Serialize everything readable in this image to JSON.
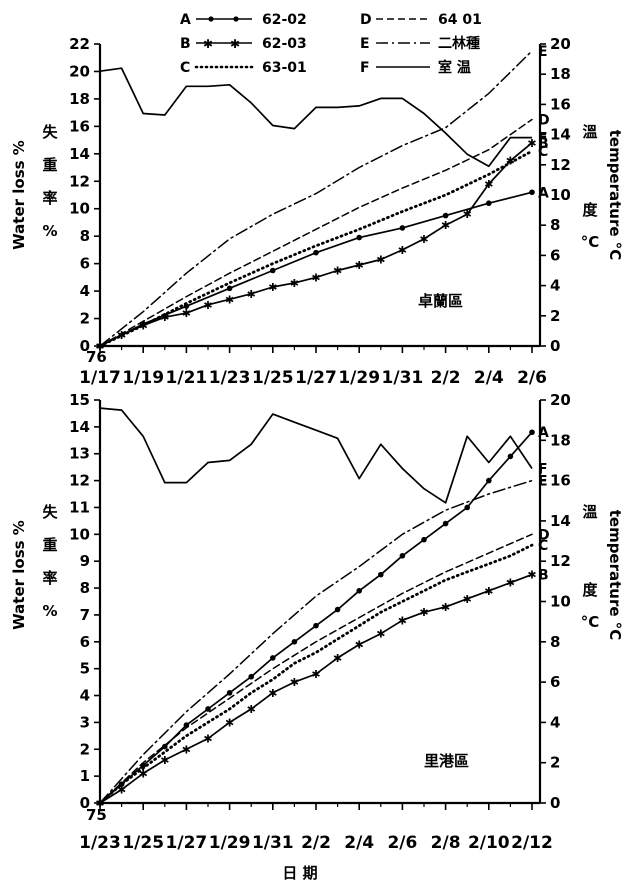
{
  "legend": {
    "entries": [
      {
        "letter": "A",
        "label": "62-02"
      },
      {
        "letter": "B",
        "label": "62-03"
      },
      {
        "letter": "C",
        "label": "63-01"
      },
      {
        "letter": "D",
        "label": "64 01"
      },
      {
        "letter": "E",
        "label": "二林種"
      },
      {
        "letter": "F",
        "label": "室 温"
      }
    ]
  },
  "chart_data": [
    {
      "type": "line",
      "region": "卓蘭區",
      "year_label": "76",
      "x_tick_labels": [
        "1/17",
        "1/19",
        "1/21",
        "1/23",
        "1/25",
        "1/27",
        "1/29",
        "1/31",
        "2/2",
        "2/4",
        "2/6"
      ],
      "ylabel_left": "Water loss %",
      "ylabel_left_cn": "失重率%",
      "ylabel_right": "temperature °C",
      "ylabel_right_cn": "溫度°C",
      "ylim_left": [
        0,
        22
      ],
      "ylim_right": [
        0,
        20
      ],
      "yticks_left": [
        0,
        2,
        4,
        6,
        8,
        10,
        12,
        14,
        16,
        18,
        20,
        22
      ],
      "yticks_right": [
        0,
        2,
        4,
        6,
        8,
        10,
        12,
        14,
        16,
        18,
        20
      ],
      "series": [
        {
          "letter": "A",
          "name": "62-02",
          "axis": "left",
          "x": [
            0,
            2,
            4,
            6,
            8,
            10,
            12,
            14,
            16,
            18,
            20
          ],
          "values": [
            0,
            1.6,
            2.9,
            4.2,
            5.5,
            6.8,
            7.9,
            8.6,
            9.5,
            10.4,
            11.2
          ]
        },
        {
          "letter": "B",
          "name": "62-03",
          "axis": "left",
          "x": [
            0,
            1,
            2,
            3,
            4,
            5,
            6,
            7,
            8,
            9,
            10,
            11,
            12,
            13,
            14,
            15,
            16,
            17,
            18,
            19,
            20
          ],
          "values": [
            0,
            0.8,
            1.5,
            2.1,
            2.4,
            3.0,
            3.4,
            3.8,
            4.3,
            4.6,
            5.0,
            5.5,
            5.9,
            6.3,
            7.0,
            7.8,
            8.8,
            9.6,
            11.8,
            13.5,
            14.8
          ]
        },
        {
          "letter": "C",
          "name": "63-01",
          "axis": "left",
          "x": [
            0,
            2,
            4,
            6,
            8,
            10,
            12,
            14,
            16,
            18,
            20
          ],
          "values": [
            0,
            1.5,
            3.1,
            4.6,
            6.0,
            7.3,
            8.5,
            9.8,
            11.0,
            12.5,
            14.2
          ]
        },
        {
          "letter": "D",
          "name": "64 01",
          "axis": "left",
          "x": [
            0,
            2,
            4,
            6,
            8,
            10,
            12,
            14,
            16,
            18,
            20
          ],
          "values": [
            0,
            1.8,
            3.6,
            5.3,
            6.9,
            8.5,
            10.1,
            11.5,
            12.8,
            14.3,
            16.5
          ]
        },
        {
          "letter": "E",
          "name": "二林種",
          "axis": "left",
          "x": [
            0,
            2,
            4,
            6,
            8,
            10,
            12,
            14,
            16,
            18,
            20
          ],
          "values": [
            0,
            2.5,
            5.3,
            7.8,
            9.6,
            11.1,
            13.0,
            14.6,
            15.9,
            18.4,
            21.5
          ]
        },
        {
          "letter": "F",
          "name": "室 温",
          "axis": "right",
          "x": [
            0,
            1,
            2,
            3,
            4,
            5,
            6,
            7,
            8,
            9,
            10,
            11,
            12,
            13,
            14,
            15,
            16,
            17,
            18,
            19,
            20
          ],
          "values": [
            18.2,
            18.4,
            15.4,
            15.3,
            17.2,
            17.2,
            17.3,
            16.1,
            14.6,
            14.4,
            15.8,
            15.8,
            15.9,
            16.4,
            16.4,
            15.4,
            14.1,
            12.7,
            11.9,
            13.8,
            13.8
          ]
        }
      ]
    },
    {
      "type": "line",
      "region": "里港區",
      "year_label": "75",
      "x_tick_labels": [
        "1/23",
        "1/25",
        "1/27",
        "1/29",
        "1/31",
        "2/2",
        "2/4",
        "2/6",
        "2/8",
        "2/10",
        "2/12"
      ],
      "ylabel_left": "Water loss %",
      "ylabel_left_cn": "失重率%",
      "ylabel_right": "temperature °C",
      "ylabel_right_cn": "溫度°C",
      "xlabel": "日 期",
      "ylim_left": [
        0,
        15
      ],
      "ylim_right": [
        0,
        20
      ],
      "yticks_left": [
        0,
        1,
        2,
        3,
        4,
        5,
        6,
        7,
        8,
        9,
        10,
        11,
        12,
        13,
        14,
        15
      ],
      "yticks_right": [
        0,
        2,
        4,
        6,
        8,
        10,
        12,
        14,
        16,
        18,
        20
      ],
      "series": [
        {
          "letter": "A",
          "name": "62-02",
          "axis": "left",
          "x": [
            0,
            1,
            2,
            3,
            4,
            5,
            6,
            7,
            8,
            9,
            10,
            11,
            12,
            13,
            14,
            15,
            16,
            17,
            18,
            19,
            20
          ],
          "values": [
            0,
            0.7,
            1.4,
            2.1,
            2.9,
            3.5,
            4.1,
            4.7,
            5.4,
            6.0,
            6.6,
            7.2,
            7.9,
            8.5,
            9.2,
            9.8,
            10.4,
            11.0,
            12.0,
            12.9,
            13.8
          ]
        },
        {
          "letter": "B",
          "name": "62-03",
          "axis": "left",
          "x": [
            0,
            1,
            2,
            3,
            4,
            5,
            6,
            7,
            8,
            9,
            10,
            11,
            12,
            13,
            14,
            15,
            16,
            17,
            18,
            19,
            20
          ],
          "values": [
            0,
            0.5,
            1.1,
            1.6,
            2.0,
            2.4,
            3.0,
            3.5,
            4.1,
            4.5,
            4.8,
            5.4,
            5.9,
            6.3,
            6.8,
            7.1,
            7.3,
            7.6,
            7.9,
            8.2,
            8.5
          ]
        },
        {
          "letter": "C",
          "name": "63-01",
          "axis": "left",
          "x": [
            0,
            1,
            2,
            3,
            4,
            5,
            6,
            7,
            8,
            9,
            10,
            11,
            12,
            13,
            14,
            15,
            16,
            17,
            18,
            19,
            20
          ],
          "values": [
            0,
            0.7,
            1.3,
            1.9,
            2.5,
            3.0,
            3.5,
            4.1,
            4.6,
            5.2,
            5.6,
            6.1,
            6.6,
            7.1,
            7.5,
            7.9,
            8.3,
            8.6,
            8.9,
            9.2,
            9.6
          ]
        },
        {
          "letter": "D",
          "name": "64 01",
          "axis": "left",
          "x": [
            0,
            2,
            4,
            6,
            8,
            10,
            12,
            14,
            16,
            18,
            20
          ],
          "values": [
            0,
            1.5,
            2.8,
            3.9,
            5.0,
            6.0,
            6.9,
            7.8,
            8.6,
            9.3,
            10.0
          ]
        },
        {
          "letter": "E",
          "name": "二林種",
          "axis": "left",
          "x": [
            0,
            2,
            4,
            6,
            8,
            10,
            12,
            14,
            16,
            18,
            20
          ],
          "values": [
            0,
            1.8,
            3.4,
            4.8,
            6.3,
            7.7,
            8.8,
            10.0,
            10.9,
            11.5,
            12.0
          ]
        },
        {
          "letter": "F",
          "name": "室 温",
          "axis": "right",
          "x": [
            0,
            1,
            2,
            3,
            4,
            5,
            6,
            7,
            8,
            9,
            10,
            11,
            12,
            13,
            14,
            15,
            16,
            17,
            18,
            19,
            20
          ],
          "values": [
            19.6,
            19.5,
            18.2,
            15.9,
            15.9,
            16.9,
            17.0,
            17.8,
            19.3,
            18.9,
            18.5,
            18.1,
            16.1,
            17.8,
            16.6,
            15.6,
            14.9,
            18.2,
            16.9,
            18.2,
            16.6
          ]
        }
      ]
    }
  ]
}
